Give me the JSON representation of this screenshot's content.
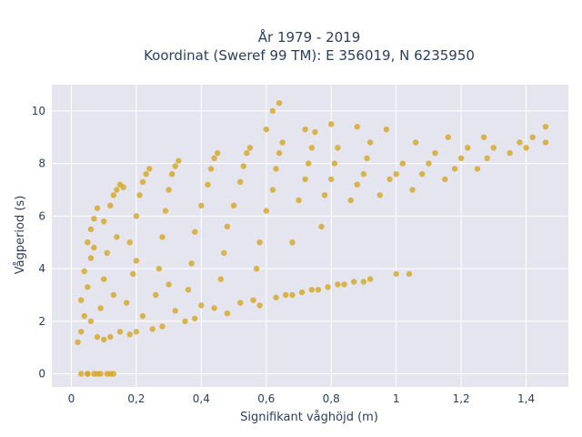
{
  "chart_data": {
    "type": "scatter",
    "title_line1": "År 1979 - 2019",
    "title_line2": "Koordinat (Sweref 99 TM): E 356019, N 6235950",
    "xlabel": "Signifikant våghöjd (m)",
    "ylabel": "Vågperiod (s)",
    "xlim": [
      -0.06,
      1.53
    ],
    "ylim": [
      -0.5,
      11.0
    ],
    "x_ticks": [
      0,
      0.2,
      0.4,
      0.6,
      0.8,
      1.0,
      1.2,
      1.4
    ],
    "x_tick_labels": [
      "0",
      "0,2",
      "0,4",
      "0,6",
      "0,8",
      "1",
      "1,2",
      "1,4"
    ],
    "y_ticks": [
      0,
      2,
      4,
      6,
      8,
      10
    ],
    "y_tick_labels": [
      "0",
      "2",
      "4",
      "6",
      "8",
      "10"
    ],
    "grid": true,
    "colors": {
      "marker": "#D4A520",
      "plot_bg": "#E5E5F0",
      "grid": "#FFFFFF",
      "text": "#2a3f5f"
    },
    "series": [
      {
        "points": [
          [
            0.03,
            0.0
          ],
          [
            0.05,
            0.0
          ],
          [
            0.07,
            0.0
          ],
          [
            0.09,
            0.0
          ],
          [
            0.11,
            0.0
          ],
          [
            0.13,
            0.0
          ],
          [
            0.02,
            1.2
          ],
          [
            0.03,
            1.6
          ],
          [
            0.04,
            2.2
          ],
          [
            0.03,
            2.8
          ],
          [
            0.05,
            3.3
          ],
          [
            0.04,
            3.9
          ],
          [
            0.06,
            4.4
          ],
          [
            0.05,
            5.0
          ],
          [
            0.06,
            5.5
          ],
          [
            0.07,
            5.9
          ],
          [
            0.08,
            6.3
          ],
          [
            0.07,
            4.8
          ],
          [
            0.06,
            2.0
          ],
          [
            0.08,
            1.4
          ],
          [
            0.1,
            1.3
          ],
          [
            0.12,
            1.4
          ],
          [
            0.09,
            2.5
          ],
          [
            0.1,
            3.6
          ],
          [
            0.11,
            4.6
          ],
          [
            0.1,
            5.8
          ],
          [
            0.12,
            6.4
          ],
          [
            0.13,
            6.8
          ],
          [
            0.14,
            7.0
          ],
          [
            0.15,
            7.2
          ],
          [
            0.16,
            7.1
          ],
          [
            0.14,
            5.2
          ],
          [
            0.13,
            3.0
          ],
          [
            0.15,
            1.6
          ],
          [
            0.18,
            1.5
          ],
          [
            0.2,
            1.6
          ],
          [
            0.17,
            2.7
          ],
          [
            0.19,
            3.8
          ],
          [
            0.18,
            5.0
          ],
          [
            0.2,
            6.0
          ],
          [
            0.21,
            6.8
          ],
          [
            0.22,
            7.3
          ],
          [
            0.23,
            7.6
          ],
          [
            0.24,
            7.8
          ],
          [
            0.2,
            4.3
          ],
          [
            0.22,
            2.2
          ],
          [
            0.25,
            1.7
          ],
          [
            0.28,
            1.8
          ],
          [
            0.26,
            3.0
          ],
          [
            0.27,
            4.0
          ],
          [
            0.28,
            5.2
          ],
          [
            0.29,
            6.2
          ],
          [
            0.3,
            7.0
          ],
          [
            0.31,
            7.6
          ],
          [
            0.32,
            7.9
          ],
          [
            0.33,
            8.1
          ],
          [
            0.3,
            3.4
          ],
          [
            0.32,
            2.4
          ],
          [
            0.35,
            2.0
          ],
          [
            0.38,
            2.1
          ],
          [
            0.36,
            3.2
          ],
          [
            0.37,
            4.2
          ],
          [
            0.38,
            5.4
          ],
          [
            0.4,
            6.4
          ],
          [
            0.42,
            7.2
          ],
          [
            0.43,
            7.8
          ],
          [
            0.44,
            8.2
          ],
          [
            0.45,
            8.4
          ],
          [
            0.4,
            2.6
          ],
          [
            0.44,
            2.5
          ],
          [
            0.48,
            2.3
          ],
          [
            0.46,
            3.6
          ],
          [
            0.47,
            4.6
          ],
          [
            0.48,
            5.6
          ],
          [
            0.5,
            6.4
          ],
          [
            0.52,
            7.3
          ],
          [
            0.53,
            7.9
          ],
          [
            0.54,
            8.4
          ],
          [
            0.55,
            8.6
          ],
          [
            0.52,
            2.7
          ],
          [
            0.56,
            2.8
          ],
          [
            0.58,
            2.6
          ],
          [
            0.57,
            4.0
          ],
          [
            0.58,
            5.0
          ],
          [
            0.6,
            6.2
          ],
          [
            0.62,
            7.0
          ],
          [
            0.63,
            7.8
          ],
          [
            0.64,
            8.4
          ],
          [
            0.65,
            8.8
          ],
          [
            0.6,
            9.3
          ],
          [
            0.62,
            10.0
          ],
          [
            0.64,
            10.3
          ],
          [
            0.63,
            2.9
          ],
          [
            0.66,
            3.0
          ],
          [
            0.68,
            3.0
          ],
          [
            0.68,
            5.0
          ],
          [
            0.7,
            6.6
          ],
          [
            0.72,
            7.4
          ],
          [
            0.73,
            8.0
          ],
          [
            0.74,
            8.6
          ],
          [
            0.72,
            9.3
          ],
          [
            0.75,
            9.2
          ],
          [
            0.71,
            3.1
          ],
          [
            0.74,
            3.2
          ],
          [
            0.76,
            3.2
          ],
          [
            0.77,
            5.6
          ],
          [
            0.78,
            6.8
          ],
          [
            0.8,
            7.4
          ],
          [
            0.81,
            8.0
          ],
          [
            0.82,
            8.6
          ],
          [
            0.8,
            9.5
          ],
          [
            0.79,
            3.3
          ],
          [
            0.82,
            3.4
          ],
          [
            0.84,
            3.4
          ],
          [
            0.86,
            6.6
          ],
          [
            0.88,
            7.2
          ],
          [
            0.9,
            7.6
          ],
          [
            0.91,
            8.2
          ],
          [
            0.92,
            8.8
          ],
          [
            0.88,
            9.4
          ],
          [
            0.87,
            3.5
          ],
          [
            0.9,
            3.5
          ],
          [
            0.92,
            3.6
          ],
          [
            0.95,
            6.8
          ],
          [
            0.98,
            7.4
          ],
          [
            1.0,
            7.6
          ],
          [
            1.02,
            8.0
          ],
          [
            0.97,
            9.3
          ],
          [
            1.0,
            3.8
          ],
          [
            1.04,
            3.8
          ],
          [
            1.05,
            7.0
          ],
          [
            1.08,
            7.6
          ],
          [
            1.1,
            8.0
          ],
          [
            1.12,
            8.4
          ],
          [
            1.06,
            8.8
          ],
          [
            1.15,
            7.4
          ],
          [
            1.18,
            7.8
          ],
          [
            1.2,
            8.2
          ],
          [
            1.22,
            8.6
          ],
          [
            1.16,
            9.0
          ],
          [
            1.25,
            7.8
          ],
          [
            1.28,
            8.2
          ],
          [
            1.3,
            8.6
          ],
          [
            1.27,
            9.0
          ],
          [
            1.35,
            8.4
          ],
          [
            1.38,
            8.8
          ],
          [
            1.4,
            8.6
          ],
          [
            1.42,
            9.0
          ],
          [
            1.46,
            8.8
          ],
          [
            1.46,
            9.4
          ],
          [
            0.05,
            0.0
          ],
          [
            0.08,
            0.0
          ],
          [
            0.12,
            0.0
          ]
        ]
      }
    ]
  }
}
